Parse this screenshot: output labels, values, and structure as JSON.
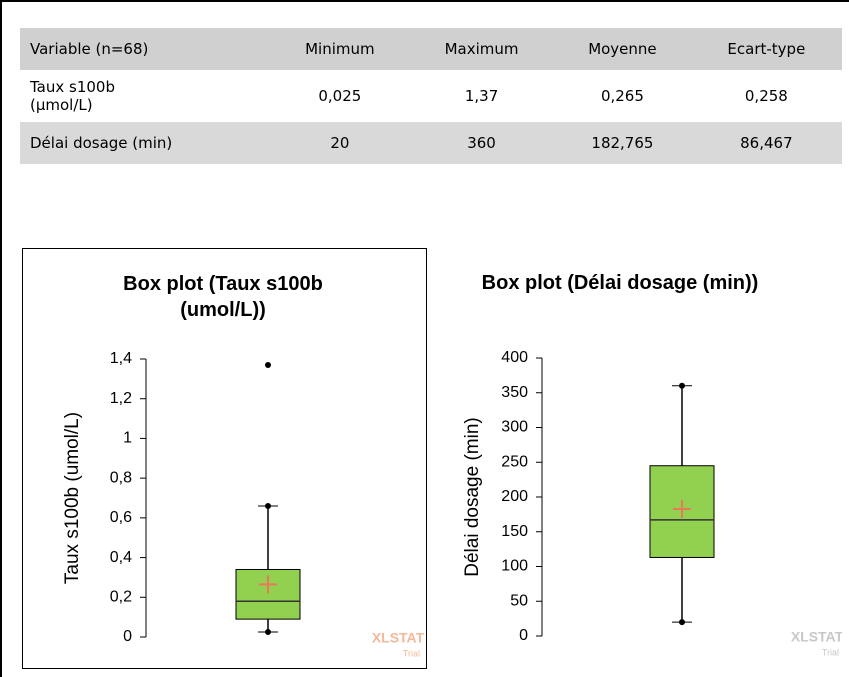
{
  "table": {
    "header": [
      "Variable (n=68)",
      "Minimum",
      "Maximum",
      "Moyenne",
      "Ecart-type"
    ],
    "rows": [
      [
        "Taux s100b\n(µmol/L)",
        "0,025",
        "1,37",
        "0,265",
        "0,258"
      ],
      [
        "Délai dosage (min)",
        "20",
        "360",
        "182,765",
        "86,467"
      ]
    ]
  },
  "chart_data": [
    {
      "type": "box",
      "title": "Box plot (Taux s100b (umol/L))",
      "y_label": "Taux s100b (umol/L)",
      "ylim": [
        0,
        1.4
      ],
      "yticks": [
        0,
        {
          "value": 0.2,
          "label": "0,2"
        },
        {
          "value": 0.4,
          "label": "0,4"
        },
        {
          "value": 0.6,
          "label": "0,6"
        },
        {
          "value": 0.8,
          "label": "0,8"
        },
        1,
        {
          "value": 1.2,
          "label": "1,2"
        },
        {
          "value": 1.4,
          "label": "1,4"
        }
      ],
      "box": {
        "min": 0.025,
        "q1": 0.09,
        "median": 0.18,
        "q3": 0.34,
        "max": 0.66,
        "mean": 0.265
      },
      "outliers": [
        1.37
      ],
      "color": "#92d050",
      "mean_color": "#e8795a",
      "watermark": "XLSTAT",
      "watermark_sub": "Trial",
      "watermark_color": "#f4b89a"
    },
    {
      "type": "box",
      "title": "Box plot (Délai dosage (min))",
      "y_label": "Délai dosage (min)",
      "ylim": [
        0,
        400
      ],
      "yticks": [
        0,
        50,
        100,
        150,
        200,
        250,
        300,
        350,
        400
      ],
      "box": {
        "min": 20,
        "q1": 113,
        "median": 167,
        "q3": 245,
        "max": 360,
        "mean": 182.765
      },
      "outliers": [],
      "color": "#92d050",
      "mean_color": "#e8795a",
      "watermark": "XLSTAT",
      "watermark_sub": "Trial",
      "watermark_color": "#c8c8c8"
    }
  ]
}
